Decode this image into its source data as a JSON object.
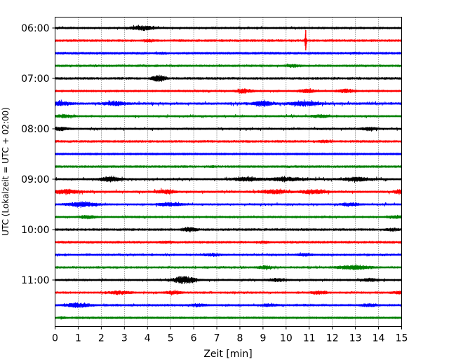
{
  "chart_data": {
    "type": "line",
    "title": "",
    "xlabel": "Zeit  [min]",
    "ylabel": "UTC (Lokalzeit = UTC + 02:00)",
    "xlim": [
      0,
      15
    ],
    "x_ticks": [
      "0",
      "1",
      "2",
      "3",
      "4",
      "5",
      "6",
      "7",
      "8",
      "9",
      "10",
      "11",
      "12",
      "13",
      "14",
      "15"
    ],
    "y_tick_labels": [
      "06:00",
      "07:00",
      "08:00",
      "09:00",
      "10:00",
      "11:00"
    ],
    "grid": "vertical-dotted",
    "trace_colors": [
      "#000000",
      "#ff0000",
      "#0000ff",
      "#008000"
    ],
    "traces": [
      {
        "label": "06:00",
        "color": "#000000",
        "amp": 0.55,
        "events": [
          [
            3.8,
            1.6,
            0.4
          ]
        ]
      },
      {
        "label": "06:15",
        "color": "#ff0000",
        "amp": 0.45,
        "events": [
          [
            4.1,
            0.9,
            0.3
          ],
          [
            10.85,
            6.0,
            0.03
          ]
        ]
      },
      {
        "label": "06:30",
        "color": "#0000ff",
        "amp": 0.4,
        "events": [
          [
            4.6,
            0.8,
            0.3
          ],
          [
            13.0,
            0.7,
            0.3
          ]
        ]
      },
      {
        "label": "06:45",
        "color": "#008000",
        "amp": 0.5,
        "events": [
          [
            10.3,
            1.0,
            0.3
          ]
        ]
      },
      {
        "label": "07:00",
        "color": "#000000",
        "amp": 0.45,
        "events": [
          [
            4.5,
            2.2,
            0.25
          ]
        ]
      },
      {
        "label": "07:15",
        "color": "#ff0000",
        "amp": 0.55,
        "events": [
          [
            8.2,
            1.4,
            0.3
          ],
          [
            10.9,
            1.3,
            0.3
          ],
          [
            12.6,
            1.3,
            0.3
          ]
        ]
      },
      {
        "label": "07:30",
        "color": "#0000ff",
        "amp": 0.85,
        "events": [
          [
            0.2,
            1.2,
            0.3
          ],
          [
            2.6,
            1.2,
            0.3
          ],
          [
            9.0,
            1.4,
            0.3
          ],
          [
            10.8,
            1.4,
            0.4
          ]
        ]
      },
      {
        "label": "07:45",
        "color": "#008000",
        "amp": 0.65,
        "events": [
          [
            0.4,
            1.0,
            0.3
          ],
          [
            11.5,
            0.9,
            0.3
          ]
        ]
      },
      {
        "label": "08:00",
        "color": "#000000",
        "amp": 0.65,
        "events": [
          [
            0.2,
            1.2,
            0.3
          ],
          [
            13.6,
            1.0,
            0.3
          ]
        ]
      },
      {
        "label": "08:15",
        "color": "#ff0000",
        "amp": 0.45,
        "events": [
          [
            11.7,
            0.9,
            0.3
          ]
        ]
      },
      {
        "label": "08:30",
        "color": "#0000ff",
        "amp": 0.35,
        "events": []
      },
      {
        "label": "08:45",
        "color": "#008000",
        "amp": 0.4,
        "events": [
          [
            6.8,
            0.7,
            0.3
          ]
        ]
      },
      {
        "label": "09:00",
        "color": "#000000",
        "amp": 0.75,
        "events": [
          [
            2.4,
            1.6,
            0.3
          ],
          [
            8.3,
            1.3,
            0.4
          ],
          [
            10.0,
            1.2,
            0.5
          ],
          [
            13.1,
            1.2,
            0.4
          ]
        ]
      },
      {
        "label": "09:15",
        "color": "#ff0000",
        "amp": 0.8,
        "events": [
          [
            0.5,
            1.3,
            0.4
          ],
          [
            4.8,
            1.2,
            0.3
          ],
          [
            9.5,
            1.2,
            0.4
          ],
          [
            11.2,
            1.2,
            0.4
          ],
          [
            15.0,
            1.6,
            0.2
          ]
        ]
      },
      {
        "label": "09:30",
        "color": "#0000ff",
        "amp": 0.65,
        "events": [
          [
            1.2,
            1.4,
            0.5
          ],
          [
            5.0,
            1.1,
            0.4
          ],
          [
            12.8,
            0.9,
            0.3
          ]
        ]
      },
      {
        "label": "09:45",
        "color": "#008000",
        "amp": 0.55,
        "events": [
          [
            1.4,
            1.1,
            0.3
          ],
          [
            14.8,
            1.0,
            0.3
          ]
        ]
      },
      {
        "label": "10:00",
        "color": "#000000",
        "amp": 0.45,
        "events": [
          [
            5.8,
            1.8,
            0.25
          ],
          [
            14.6,
            1.0,
            0.3
          ]
        ]
      },
      {
        "label": "10:15",
        "color": "#ff0000",
        "amp": 0.45,
        "events": [
          [
            4.8,
            0.8,
            0.3
          ],
          [
            9.0,
            0.8,
            0.3
          ]
        ]
      },
      {
        "label": "10:30",
        "color": "#0000ff",
        "amp": 0.55,
        "events": [
          [
            6.8,
            0.9,
            0.3
          ],
          [
            10.8,
            0.9,
            0.3
          ]
        ]
      },
      {
        "label": "10:45",
        "color": "#008000",
        "amp": 0.55,
        "events": [
          [
            9.1,
            1.0,
            0.3
          ],
          [
            13.0,
            1.4,
            0.6
          ]
        ]
      },
      {
        "label": "11:00",
        "color": "#000000",
        "amp": 0.6,
        "events": [
          [
            5.6,
            2.6,
            0.35
          ],
          [
            9.6,
            1.0,
            0.3
          ],
          [
            13.6,
            1.0,
            0.3
          ]
        ]
      },
      {
        "label": "11:15",
        "color": "#ff0000",
        "amp": 0.55,
        "events": [
          [
            2.8,
            1.1,
            0.4
          ],
          [
            5.1,
            1.1,
            0.3
          ],
          [
            11.4,
            1.0,
            0.3
          ],
          [
            14.9,
            1.0,
            0.3
          ]
        ]
      },
      {
        "label": "11:30",
        "color": "#0000ff",
        "amp": 0.55,
        "events": [
          [
            1.0,
            1.6,
            0.4
          ],
          [
            6.2,
            1.0,
            0.3
          ],
          [
            9.3,
            1.0,
            0.3
          ],
          [
            13.6,
            1.0,
            0.3
          ]
        ]
      },
      {
        "label": "11:45",
        "color": "#008000",
        "amp": 0.35,
        "events": [
          [
            0.3,
            0.8,
            0.2
          ]
        ]
      }
    ]
  }
}
